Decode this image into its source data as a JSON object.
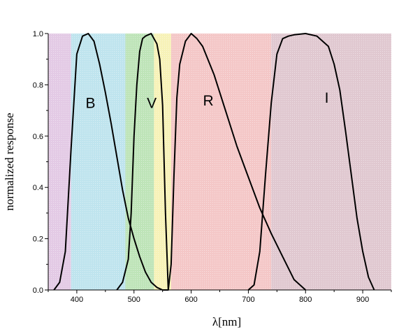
{
  "chart_data": {
    "type": "line",
    "title": "",
    "xlabel": "λ[nm]",
    "ylabel": "normalized response",
    "xlim": [
      350,
      950
    ],
    "ylim": [
      0,
      1
    ],
    "x_ticks": [
      400,
      500,
      600,
      700,
      800,
      900
    ],
    "y_ticks": [
      0,
      0.2,
      0.4,
      0.6,
      0.8,
      1
    ],
    "x_tick_labels": [
      "400",
      "500",
      "600",
      "700",
      "800",
      "900"
    ],
    "y_tick_labels": [
      "0.0",
      "0.2",
      "0.4",
      "0.6",
      "0.8",
      "1.0"
    ],
    "grid": false,
    "background_bands": [
      {
        "from": 350,
        "to": 390,
        "color": "#d9b8dc"
      },
      {
        "from": 390,
        "to": 485,
        "color": "#a9dbe8"
      },
      {
        "from": 485,
        "to": 535,
        "color": "#a8dba0"
      },
      {
        "from": 535,
        "to": 565,
        "color": "#f4eea0"
      },
      {
        "from": 565,
        "to": 740,
        "color": "#f0b4b4"
      },
      {
        "from": 740,
        "to": 950,
        "color": "#d6b6c0"
      }
    ],
    "band_labels": [
      {
        "text": "B",
        "x": 424,
        "y": 0.71
      },
      {
        "text": "V",
        "x": 531,
        "y": 0.71
      },
      {
        "text": "R",
        "x": 630,
        "y": 0.72
      },
      {
        "text": "I",
        "x": 837,
        "y": 0.73
      }
    ],
    "series": [
      {
        "name": "B",
        "x": [
          360,
          370,
          380,
          390,
          400,
          410,
          420,
          430,
          440,
          450,
          460,
          470,
          480,
          490,
          500,
          510,
          520,
          530,
          540,
          550,
          560
        ],
        "y": [
          0.0,
          0.03,
          0.15,
          0.55,
          0.92,
          0.99,
          1.0,
          0.97,
          0.88,
          0.77,
          0.65,
          0.52,
          0.39,
          0.28,
          0.2,
          0.13,
          0.07,
          0.03,
          0.01,
          0.0,
          0.0
        ]
      },
      {
        "name": "V",
        "x": [
          470,
          480,
          490,
          495,
          500,
          505,
          510,
          515,
          520,
          530,
          540,
          545,
          550,
          555,
          560
        ],
        "y": [
          0.0,
          0.03,
          0.12,
          0.3,
          0.6,
          0.8,
          0.93,
          0.98,
          0.99,
          1.0,
          0.96,
          0.9,
          0.72,
          0.3,
          0.0
        ]
      },
      {
        "name": "R",
        "x": [
          550,
          560,
          565,
          570,
          575,
          580,
          590,
          600,
          610,
          620,
          640,
          660,
          680,
          700,
          720,
          740,
          760,
          780,
          800
        ],
        "y": [
          0.0,
          0.0,
          0.1,
          0.45,
          0.75,
          0.88,
          0.97,
          1.0,
          0.98,
          0.95,
          0.84,
          0.7,
          0.56,
          0.44,
          0.32,
          0.22,
          0.13,
          0.04,
          0.0
        ]
      },
      {
        "name": "I",
        "x": [
          700,
          710,
          720,
          730,
          740,
          750,
          760,
          770,
          780,
          800,
          820,
          840,
          850,
          860,
          870,
          880,
          890,
          900,
          910,
          920
        ],
        "y": [
          0.0,
          0.02,
          0.15,
          0.45,
          0.73,
          0.92,
          0.98,
          0.99,
          0.995,
          1.0,
          0.99,
          0.95,
          0.88,
          0.78,
          0.62,
          0.45,
          0.28,
          0.15,
          0.05,
          0.0
        ]
      }
    ]
  }
}
